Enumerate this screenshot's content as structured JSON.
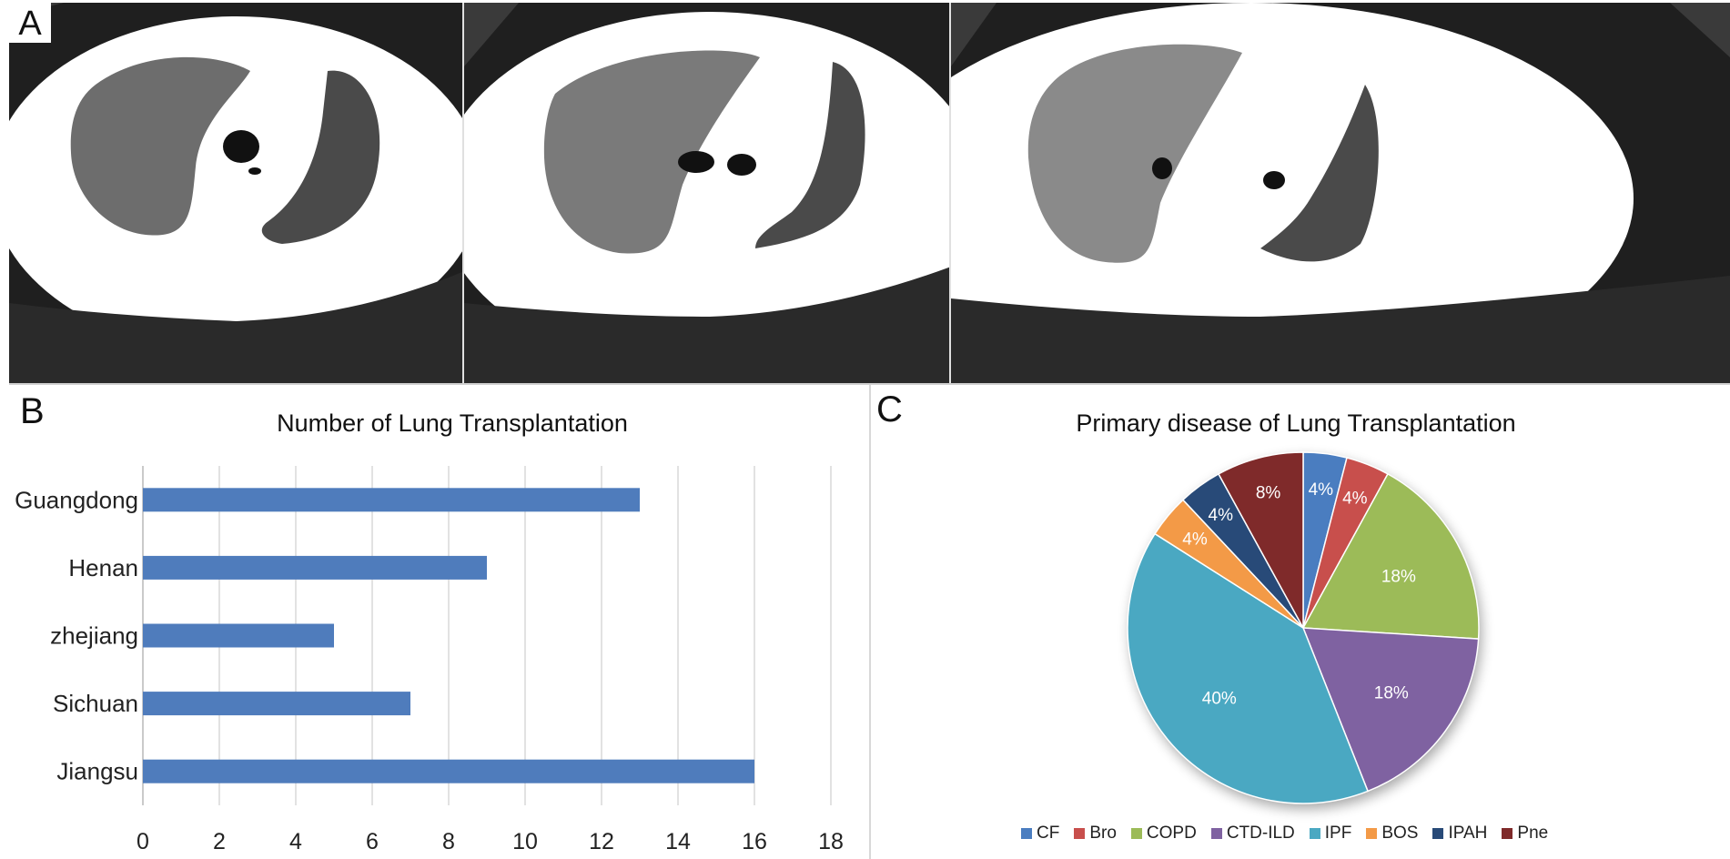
{
  "panel_labels": {
    "a": "A",
    "b": "B",
    "c": "C"
  },
  "bar_chart": {
    "title": "Number of Lung Transplantation",
    "color": "#4f7cbc",
    "grid_color": "#d9d9d9"
  },
  "pie_chart": {
    "title": "Primary disease of Lung Transplantation"
  },
  "chart_data": [
    {
      "type": "bar",
      "orientation": "horizontal",
      "title": "Number of Lung Transplantation",
      "categories": [
        "Guangdong",
        "Henan",
        "zhejiang",
        "Sichuan",
        "Jiangsu"
      ],
      "values": [
        13,
        9,
        5,
        7,
        16
      ],
      "xlim": [
        0,
        18
      ],
      "xticks": [
        "0",
        "2",
        "4",
        "6",
        "8",
        "10",
        "12",
        "14",
        "16",
        "18"
      ],
      "grid": true,
      "color": "#4f7cbc"
    },
    {
      "type": "pie",
      "title": "Primary disease of Lung Transplantation",
      "labels": [
        "CF",
        "Bro",
        "COPD",
        "CTD-ILD",
        "IPF",
        "BOS",
        "IPAH",
        "Pne"
      ],
      "values": [
        4,
        4,
        18,
        18,
        40,
        4,
        4,
        8
      ],
      "data_labels": [
        "4%",
        "4%",
        "18%",
        "18%",
        "40%",
        "4%",
        "4%",
        "8%"
      ],
      "colors": [
        "#4a7dc0",
        "#c84f4c",
        "#9cbb58",
        "#7f62a1",
        "#4aa8c2",
        "#f39a47",
        "#284a78",
        "#7f2a2a"
      ],
      "legend_position": "bottom"
    }
  ]
}
